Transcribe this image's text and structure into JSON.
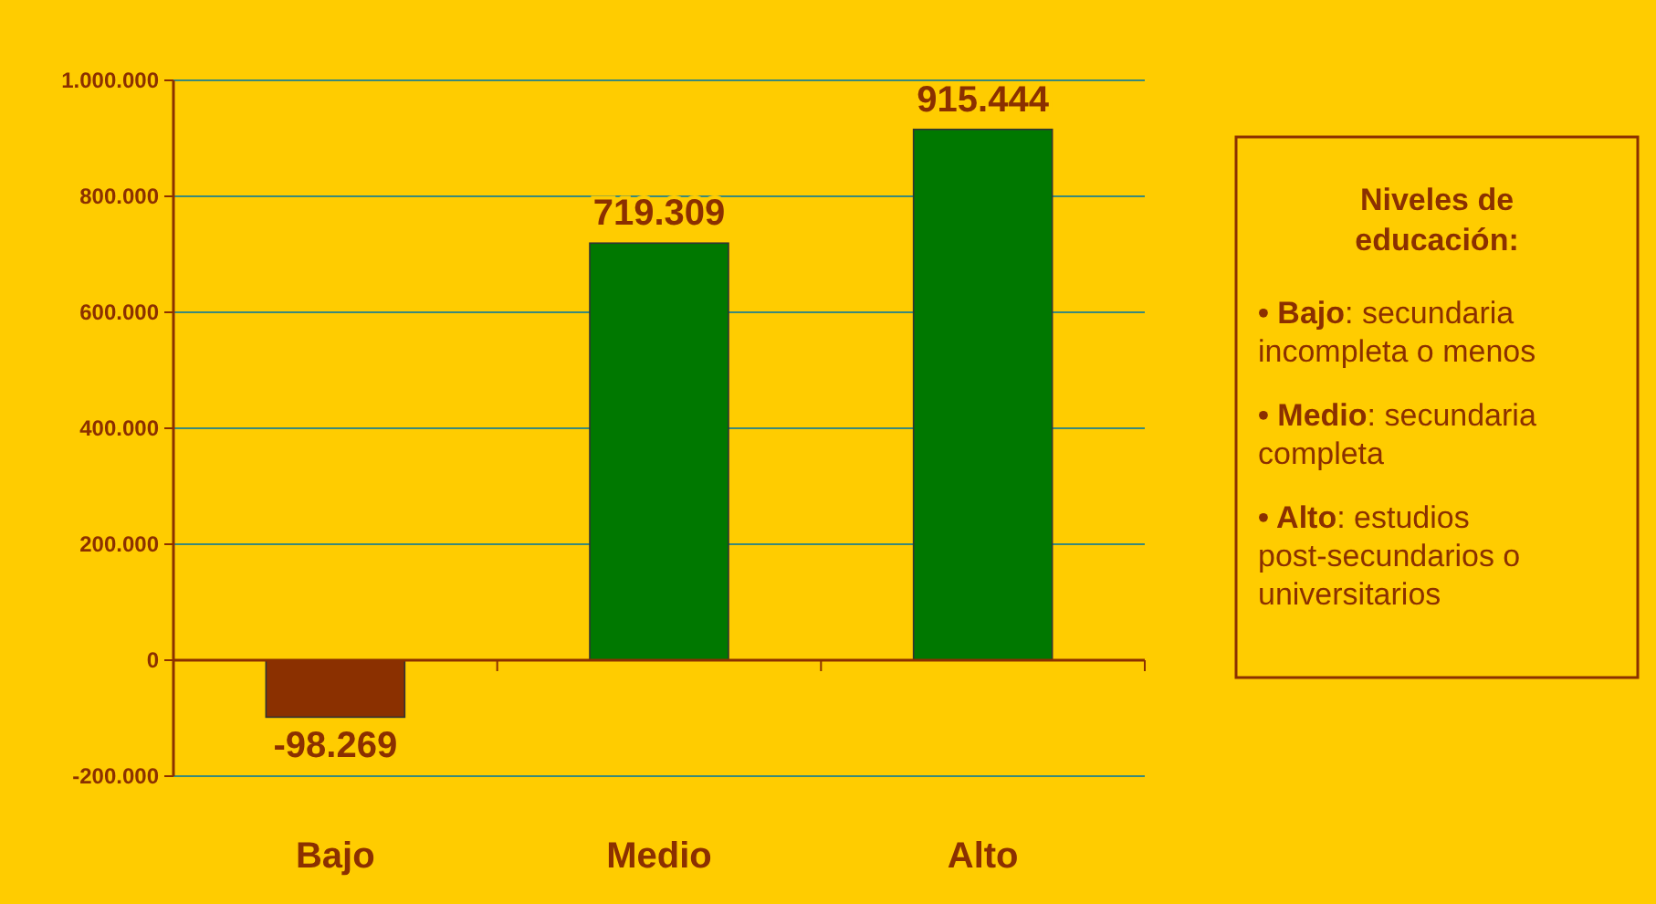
{
  "chart_data": {
    "type": "bar",
    "categories": [
      "Bajo",
      "Medio",
      "Alto"
    ],
    "values": [
      -98269,
      719309,
      915444
    ],
    "colors": [
      "#8b3000",
      "#007800",
      "#007800"
    ],
    "value_labels": [
      "-98.269",
      "719.309",
      "915.444"
    ],
    "ylim": [
      -200000,
      1000000
    ],
    "yticks": [
      {
        "value": -200000,
        "label": "-200.000"
      },
      {
        "value": 0,
        "label": "0"
      },
      {
        "value": 200000,
        "label": "200.000"
      },
      {
        "value": 400000,
        "label": "400.000"
      },
      {
        "value": 600000,
        "label": "600.000"
      },
      {
        "value": 800000,
        "label": "800.000"
      },
      {
        "value": 1000000,
        "label": "1.000.000"
      }
    ],
    "grid": "y",
    "ref_lines": [
      {
        "axis": "y",
        "value": 0,
        "color": "#8b3000"
      }
    ],
    "annotations": [
      "Niveles de educación:",
      "• Bajo: secundaria incompleta o menos",
      "• Medio: secundaria completa",
      "• Alto: estudios post-secundarios o universitarios"
    ]
  }
}
